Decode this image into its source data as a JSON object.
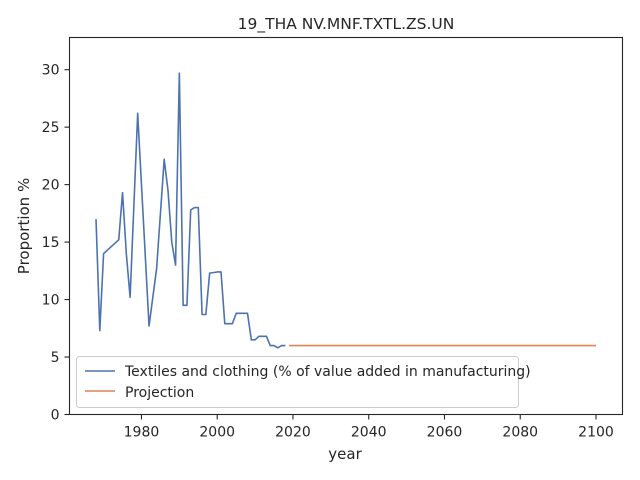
{
  "chart_data": {
    "type": "line",
    "title": "19_THA NV.MNF.TXTL.ZS.UN",
    "xlabel": "year",
    "ylabel": "Proportion %",
    "xlim": [
      1961,
      2107
    ],
    "ylim": [
      0,
      32.8
    ],
    "xticks": [
      1980,
      2000,
      2020,
      2040,
      2060,
      2080,
      2100
    ],
    "yticks": [
      0,
      5,
      10,
      15,
      20,
      25,
      30
    ],
    "grid": false,
    "legend_position": "lower-left",
    "series": [
      {
        "name": "Textiles and clothing (% of value added in manufacturing)",
        "color": "#4c72b0",
        "x": [
          1968,
          1969,
          1970,
          1974,
          1975,
          1976,
          1977,
          1979,
          1980,
          1982,
          1984,
          1986,
          1987,
          1988,
          1989,
          1990,
          1991,
          1992,
          1993,
          1994,
          1995,
          1996,
          1997,
          1998,
          2000,
          2001,
          2002,
          2004,
          2005,
          2006,
          2008,
          2009,
          2010,
          2011,
          2012,
          2013,
          2014,
          2015,
          2016,
          2017,
          2018
        ],
        "y": [
          17.0,
          7.3,
          14.0,
          15.2,
          19.3,
          14.0,
          10.2,
          26.2,
          20.0,
          7.7,
          12.7,
          22.2,
          19.5,
          15.0,
          13.0,
          29.7,
          9.5,
          9.5,
          17.8,
          18.0,
          18.0,
          8.7,
          8.7,
          12.3,
          12.4,
          12.4,
          7.9,
          7.9,
          8.8,
          8.8,
          8.8,
          6.5,
          6.5,
          6.8,
          6.8,
          6.8,
          6.0,
          6.0,
          5.8,
          6.0,
          6.0
        ]
      },
      {
        "name": "Projection",
        "color": "#dd8452",
        "x": [
          2019,
          2100
        ],
        "y": [
          6.0,
          6.0
        ]
      }
    ]
  }
}
